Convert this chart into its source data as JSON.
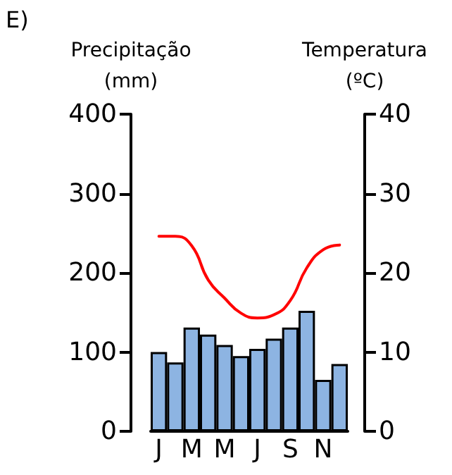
{
  "chart_data": {
    "type": "bar",
    "ylabel": "Precipitação\n(mm)",
    "y2label": "Temperatura\n(ºC)",
    "annotations": [
      "E)"
    ],
    "categories": [
      "J",
      null,
      "M",
      null,
      "M",
      null,
      "J",
      null,
      "S",
      null,
      "N",
      null
    ],
    "series": [
      {
        "color": "#8db4e2",
        "values": [
          100,
          87,
          131,
          122,
          109,
          95,
          104,
          117,
          131,
          152,
          65,
          85
        ]
      },
      {
        "type": "line",
        "axis": "y2",
        "color": "#ff0000",
        "values": [
          24.6,
          24.6,
          23.4,
          19.1,
          16.8,
          14.9,
          14.3,
          14.7,
          16.5,
          20.6,
          22.9,
          23.5
        ]
      }
    ],
    "ylim": [
      0,
      400
    ],
    "yticks": [
      0,
      100,
      200,
      300,
      400
    ],
    "y2lim": [
      0,
      40
    ],
    "y2ticks": [
      0,
      10,
      20,
      30,
      40
    ],
    "grid": false,
    "marker": "none",
    "line_style": "solid"
  }
}
